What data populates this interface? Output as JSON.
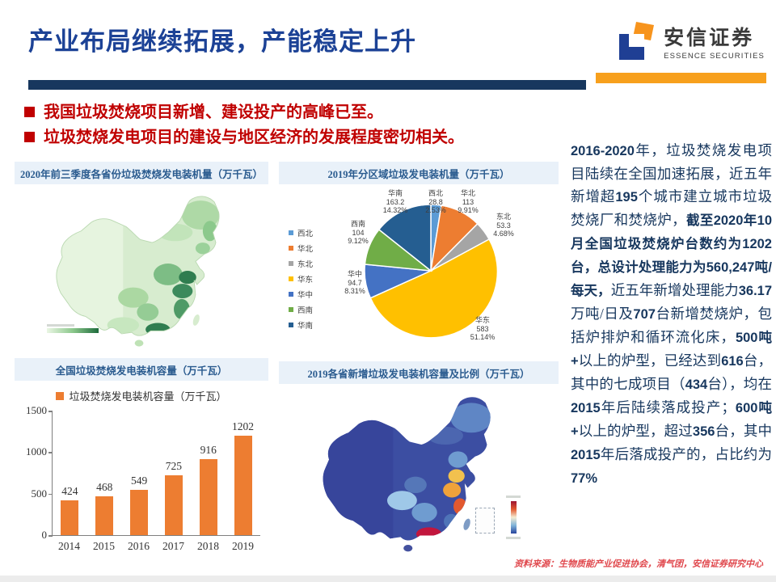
{
  "header": {
    "title": "产业布局继续拓展，产能稳定上升",
    "logo_cn": "安信证券",
    "logo_en": "ESSENCE SECURITIES"
  },
  "bullets": [
    "我国垃圾焚烧项目新增、建设投产的高峰已至。",
    "垃圾焚烧发电项目的建设与地区经济的发展程度密切相关。"
  ],
  "panels": {
    "map2020": {
      "title": "2020年前三季度各省份垃圾焚烧发电装机量（万千瓦）"
    },
    "pie2019": {
      "title": "2019年分区域垃圾发电装机量（万千瓦）"
    },
    "bar": {
      "title": "全国垃圾焚烧发电装机容量（万千瓦）"
    },
    "map2019": {
      "title": "2019各省新增垃圾发电装机容量及比例（万千瓦）"
    }
  },
  "sidebar": {
    "segments": [
      {
        "t": "2016-2020",
        "b": true
      },
      {
        "t": "年，垃圾焚烧发电项目陆续在全国加速拓展，近五年新增超",
        "b": false
      },
      {
        "t": "195",
        "b": true
      },
      {
        "t": "个城市建立城市垃圾焚烧厂和焚烧炉，",
        "b": false
      },
      {
        "t": "截至2020年10月全国垃圾焚烧炉台数约为1202台，总设计处理能力为560,247吨/每天，",
        "b": true
      },
      {
        "t": "近五年新增处理能力",
        "b": false
      },
      {
        "t": "36.17",
        "b": true
      },
      {
        "t": "万吨/日及",
        "b": false
      },
      {
        "t": "707",
        "b": true
      },
      {
        "t": "台新增焚烧炉，包括炉排炉和循环流化床，",
        "b": false
      },
      {
        "t": "500吨+",
        "b": true
      },
      {
        "t": "以上的炉型，已经达到",
        "b": false
      },
      {
        "t": "616",
        "b": true
      },
      {
        "t": "台，其中的七成项目（",
        "b": false
      },
      {
        "t": "434",
        "b": true
      },
      {
        "t": "台），均在",
        "b": false
      },
      {
        "t": "2015",
        "b": true
      },
      {
        "t": "年后陆续落成投产；",
        "b": false
      },
      {
        "t": "600吨+",
        "b": true
      },
      {
        "t": "以上的炉型，超过",
        "b": false
      },
      {
        "t": "356",
        "b": true
      },
      {
        "t": "台，其中",
        "b": false
      },
      {
        "t": "2015",
        "b": true
      },
      {
        "t": "年后落成投产的，占比约为",
        "b": false
      },
      {
        "t": "77%",
        "b": true
      }
    ]
  },
  "source": "资料来源：生物质能产业促进协会，清气团，安信证券研究中心",
  "chart_data": [
    {
      "type": "pie",
      "title": "2019年分区域垃圾发电装机量（万千瓦）",
      "labels": [
        "西北",
        "华北",
        "东北",
        "华东",
        "华中",
        "西南",
        "华南"
      ],
      "values": [
        28.8,
        113,
        53.3,
        583,
        94.7,
        104,
        163.2
      ],
      "percent_labels": [
        "2.53%",
        "9.91%",
        "4.68%",
        "51.14%",
        "8.31%",
        "9.12%",
        "14.32%"
      ],
      "colors": [
        "#5B9BD5",
        "#ED7D31",
        "#A5A5A5",
        "#FFC000",
        "#4472C4",
        "#70AD47",
        "#255E91"
      ],
      "legend_position": "left",
      "start_angle": -90
    },
    {
      "type": "bar",
      "title": "全国垃圾焚烧发电装机容量（万千瓦）",
      "legend": "垃圾焚烧发电装机容量（万千瓦）",
      "categories": [
        "2014",
        "2015",
        "2016",
        "2017",
        "2018",
        "2019"
      ],
      "values": [
        424,
        468,
        549,
        725,
        916,
        1202
      ],
      "ylim": [
        0,
        1500
      ],
      "yticks": [
        0,
        500,
        1000,
        1500
      ],
      "bar_color": "#ED7D31"
    },
    {
      "type": "heatmap",
      "subtype": "china-choropleth",
      "title": "2020年前三季度各省份垃圾焚烧发电装机量（万千瓦）",
      "note": "绿色色阶：山东、江苏、广东等东部省份颜色最深（装机量最高），西部省份颜色最浅"
    },
    {
      "type": "heatmap",
      "subtype": "china-choropleth",
      "title": "2019各省新增垃圾发电装机容量及比例（万千瓦）",
      "note": "蓝-红色阶：广东深红最高，浙江红色，山东/江苏橙黄，中西部省份为蓝色低值"
    }
  ]
}
